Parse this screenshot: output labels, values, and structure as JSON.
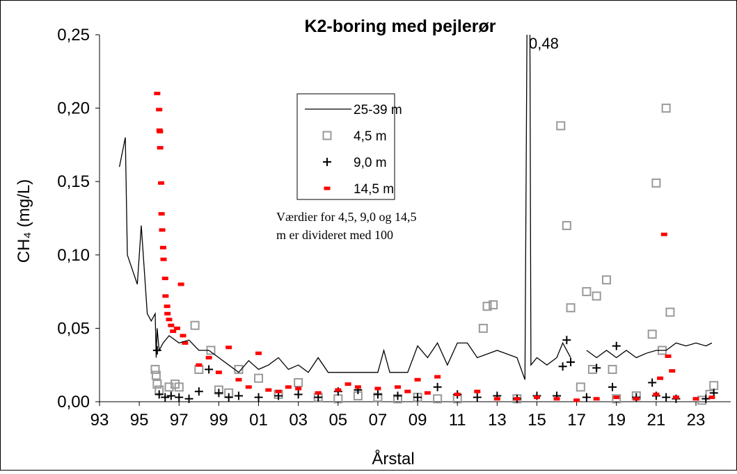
{
  "chart_data": {
    "type": "line-scatter",
    "title": "K2-boring med pejlerør",
    "x_label": "Årstal",
    "y_label": "CH₄ (mg/L)",
    "annotation": "0,48",
    "note": [
      "Værdier for 4,5, 9,0 og 14,5",
      "m er divideret med 100"
    ],
    "xlim": [
      1993,
      2024.75
    ],
    "ylim": [
      0,
      0.25
    ],
    "xticks": [
      {
        "value": 1993,
        "label": "93"
      },
      {
        "value": 1995,
        "label": "95"
      },
      {
        "value": 1997,
        "label": "97"
      },
      {
        "value": 1999,
        "label": "99"
      },
      {
        "value": 2001,
        "label": "01"
      },
      {
        "value": 2003,
        "label": "03"
      },
      {
        "value": 2005,
        "label": "05"
      },
      {
        "value": 2007,
        "label": "07"
      },
      {
        "value": 2009,
        "label": "09"
      },
      {
        "value": 2011,
        "label": "11"
      },
      {
        "value": 2013,
        "label": "13"
      },
      {
        "value": 2015,
        "label": "15"
      },
      {
        "value": 2017,
        "label": "17"
      },
      {
        "value": 2019,
        "label": "19"
      },
      {
        "value": 2021,
        "label": "21"
      },
      {
        "value": 2023,
        "label": "23"
      }
    ],
    "yticks": [
      {
        "value": 0,
        "label": "0,00"
      },
      {
        "value": 0.05,
        "label": "0,05"
      },
      {
        "value": 0.1,
        "label": "0,10"
      },
      {
        "value": 0.15,
        "label": "0,15"
      },
      {
        "value": 0.2,
        "label": "0,20"
      },
      {
        "value": 0.25,
        "label": "0,25"
      }
    ],
    "grid": false,
    "series": [
      {
        "name": "25-39 m",
        "kind": "line",
        "color": "#000000",
        "x": [
          1994,
          1994.3,
          1994.4,
          1994.9,
          1995.1,
          1995.4,
          1995.6,
          1995.8,
          1995.85,
          1995.9,
          1996,
          1996.2,
          1996.5,
          1997,
          1997.5,
          1998,
          1998.5,
          1999,
          1999.5,
          2000,
          2000.5,
          2001,
          2001.5,
          2002,
          2002.5,
          2003,
          2003.5,
          2004,
          2004.5,
          2005,
          2006,
          2007,
          2007.3,
          2007.6,
          2008.5,
          2009,
          2009.5,
          2010,
          2010.5,
          2011,
          2011.5,
          2012,
          2013,
          2014,
          2014.4,
          2014.6,
          2014.7,
          2015,
          2015.5,
          2016,
          2016.3,
          2016.7,
          null,
          2017.5,
          2018,
          2018.5,
          2019,
          2019.5,
          2020,
          2020.5,
          2021,
          2021.5,
          2022,
          2022.5,
          2023,
          2023.5,
          2023.8
        ],
        "values": [
          0.16,
          0.18,
          0.1,
          0.08,
          0.12,
          0.06,
          0.055,
          0.06,
          0.03,
          0.05,
          0.035,
          0.04,
          0.045,
          0.04,
          0.042,
          0.035,
          0.035,
          0.03,
          0.025,
          0.02,
          0.028,
          0.022,
          0.025,
          0.03,
          0.022,
          0.025,
          0.02,
          0.03,
          0.02,
          0.02,
          0.02,
          0.02,
          0.035,
          0.02,
          0.02,
          0.038,
          0.03,
          0.04,
          0.025,
          0.04,
          0.04,
          0.03,
          0.035,
          0.03,
          0.015,
          0.48,
          0.025,
          0.03,
          0.025,
          0.03,
          0.04,
          0.03,
          null,
          0.035,
          0.03,
          0.035,
          0.03,
          0.035,
          0.03,
          0.033,
          0.035,
          0.035,
          0.04,
          0.038,
          0.04,
          0.038,
          0.04
        ]
      },
      {
        "name": "4,5 m",
        "kind": "scatter",
        "marker": "square",
        "color": "#999999",
        "x": [
          1995.8,
          1995.85,
          1995.9,
          1996,
          1996.5,
          1996.8,
          1997,
          1997.8,
          1998,
          1998.6,
          1999,
          1999.5,
          2000,
          2001,
          2002,
          2003,
          2004,
          2005,
          2006,
          2007,
          2008,
          2009,
          2010,
          2011,
          2012.3,
          2012.5,
          2012.8,
          2014,
          2016.2,
          2016.5,
          2016.7,
          2017.2,
          2017.5,
          2017.8,
          2018,
          2018.5,
          2018.8,
          2019,
          2020,
          2020.8,
          2021,
          2021.3,
          2021.5,
          2021.7,
          2023.3,
          2023.7,
          2023.9
        ],
        "values": [
          0.022,
          0.018,
          0.012,
          0.008,
          0.01,
          0.012,
          0.01,
          0.052,
          0.022,
          0.035,
          0.008,
          0.006,
          0.022,
          0.016,
          0.005,
          0.013,
          0.003,
          0.002,
          0.004,
          0.003,
          0.002,
          0.003,
          0.002,
          0.002,
          0.05,
          0.065,
          0.066,
          0.002,
          0.188,
          0.12,
          0.064,
          0.01,
          0.075,
          0.022,
          0.072,
          0.083,
          0.022,
          0.002,
          0.004,
          0.046,
          0.149,
          0.035,
          0.2,
          0.061,
          0.001,
          0.005,
          0.011
        ]
      },
      {
        "name": "9,0 m",
        "kind": "scatter",
        "marker": "plus",
        "color": "#000000",
        "x": [
          1995.9,
          1996,
          1996.3,
          1996.6,
          1997,
          1997.5,
          1998,
          1998.5,
          1999,
          1999.5,
          2000,
          2001,
          2002,
          2003,
          2004,
          2005,
          2006,
          2007,
          2008,
          2009,
          2010,
          2011,
          2012,
          2013,
          2014,
          2015,
          2016,
          2016.3,
          2016.5,
          2016.7,
          2017.5,
          2018,
          2018.8,
          2019,
          2020,
          2020.8,
          2021,
          2021.5,
          2022,
          2023.5,
          2023.9
        ],
        "values": [
          0.035,
          0.005,
          0.003,
          0.004,
          0.003,
          0.002,
          0.007,
          0.022,
          0.006,
          0.003,
          0.004,
          0.003,
          0.004,
          0.005,
          0.003,
          0.007,
          0.008,
          0.005,
          0.004,
          0.003,
          0.01,
          0.005,
          0.003,
          0.004,
          0.002,
          0.004,
          0.004,
          0.024,
          0.042,
          0.027,
          0.003,
          0.023,
          0.01,
          0.038,
          0.003,
          0.013,
          0.004,
          0.003,
          0.002,
          0.002,
          0.006
        ]
      },
      {
        "name": "14,5 m",
        "kind": "scatter",
        "marker": "dash",
        "color": "#ff0000",
        "x": [
          1995.9,
          1996,
          1996.02,
          1996.04,
          1996.05,
          1996.1,
          1996.12,
          1996.15,
          1996.2,
          1996.22,
          1996.3,
          1996.32,
          1996.4,
          1996.42,
          1996.5,
          1996.6,
          1996.7,
          1996.9,
          1997.1,
          1997.2,
          1997.3,
          1998,
          1998.5,
          1999,
          1999.5,
          2000,
          2000.5,
          2001,
          2001.5,
          2002,
          2002.5,
          2003,
          2004,
          2005,
          2005.5,
          2006,
          2007,
          2008,
          2008.5,
          2009,
          2009.5,
          2010,
          2011,
          2012,
          2013,
          2014,
          2015,
          2016,
          2017,
          2018,
          2019,
          2020,
          2021,
          2021.2,
          2021.4,
          2021.6,
          2021.8,
          2022,
          2023,
          2023.8
        ],
        "values": [
          0.21,
          0.199,
          0.185,
          0.184,
          0.173,
          0.149,
          0.128,
          0.117,
          0.105,
          0.097,
          0.084,
          0.072,
          0.065,
          0.06,
          0.056,
          0.052,
          0.048,
          0.05,
          0.08,
          0.045,
          0.04,
          0.025,
          0.03,
          0.02,
          0.037,
          0.015,
          0.01,
          0.033,
          0.008,
          0.007,
          0.01,
          0.009,
          0.006,
          0.008,
          0.012,
          0.01,
          0.009,
          0.01,
          0.007,
          0.015,
          0.006,
          0.017,
          0.005,
          0.007,
          0.002,
          0.002,
          0.003,
          0.002,
          0.001,
          0.002,
          0.003,
          0.002,
          0.005,
          0.016,
          0.114,
          0.031,
          0.021,
          0.003,
          0.002,
          0.003
        ]
      }
    ]
  }
}
